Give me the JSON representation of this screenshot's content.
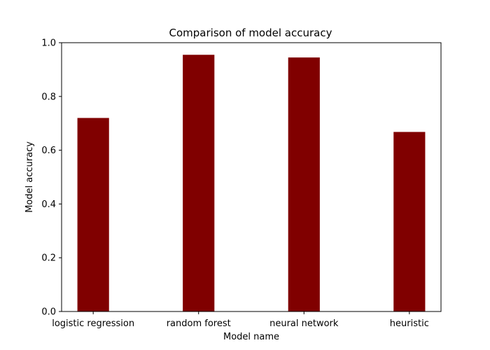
{
  "chart_data": {
    "type": "bar",
    "title": "Comparison of model accuracy",
    "xlabel": "Model name",
    "ylabel": "Model accuracy",
    "categories": [
      "logistic regression",
      "random forest",
      "neural network",
      "heuristic"
    ],
    "values": [
      0.72,
      0.955,
      0.945,
      0.668
    ],
    "ylim": [
      0,
      1.0
    ],
    "yticks": [
      "0.0",
      "0.2",
      "0.4",
      "0.6",
      "0.8",
      "1.0"
    ],
    "grid": false,
    "bar_color": "#800000"
  }
}
